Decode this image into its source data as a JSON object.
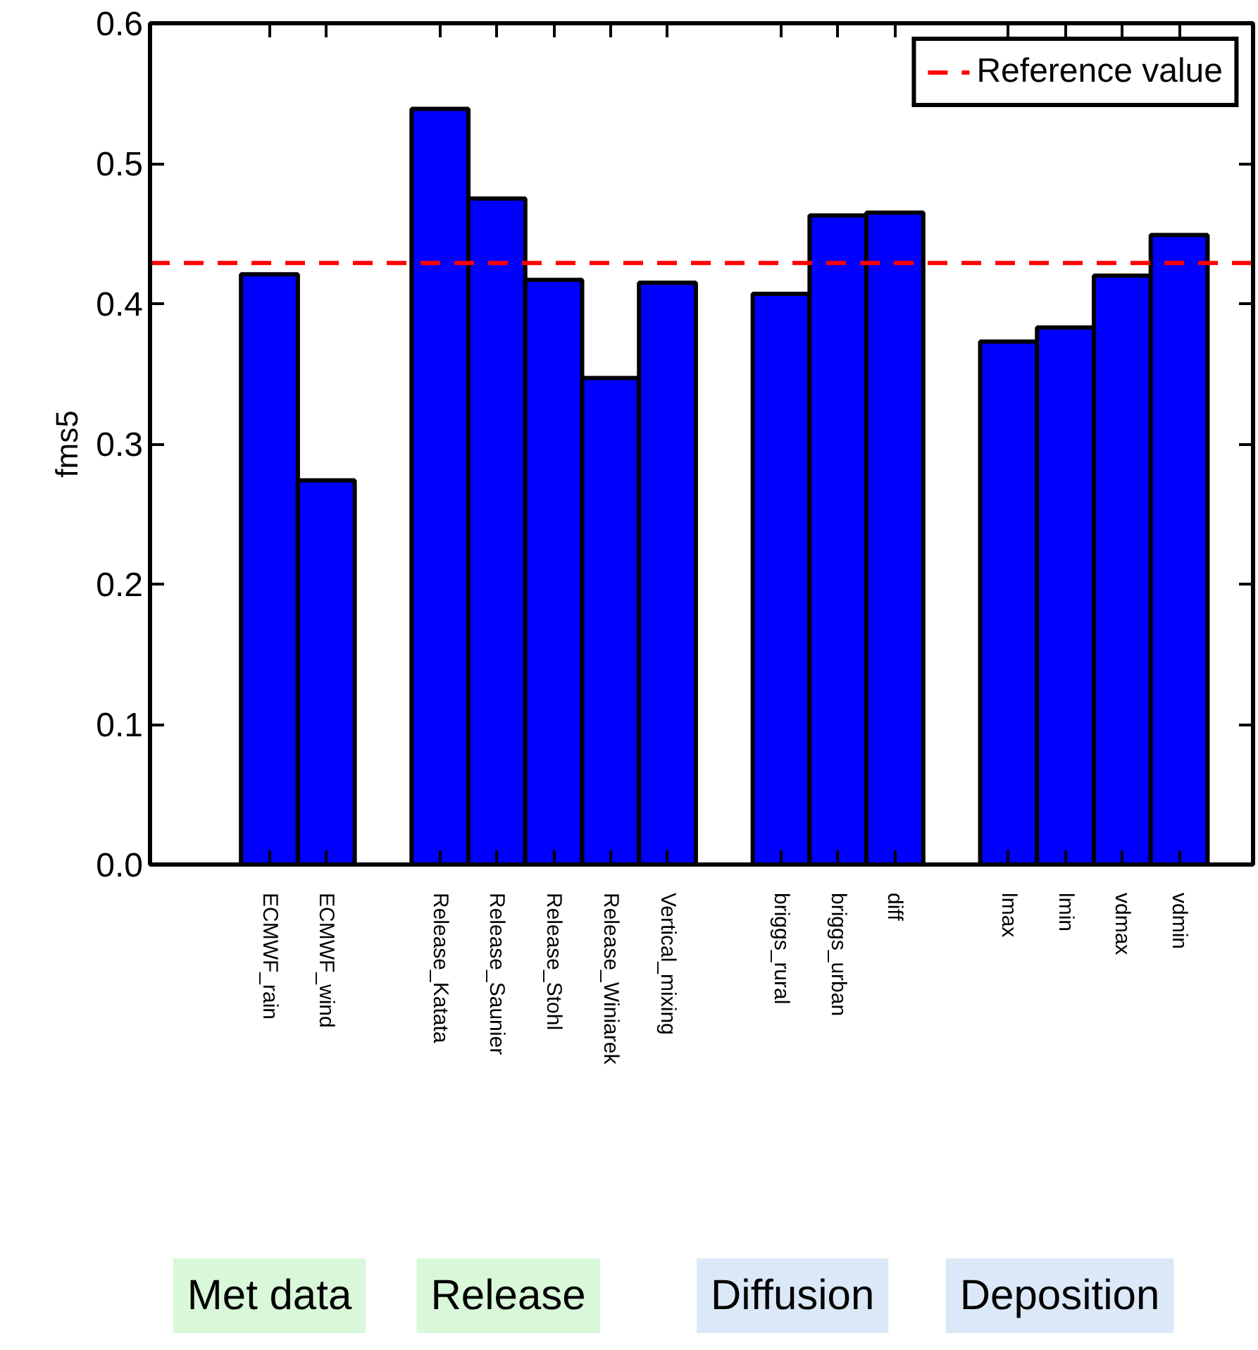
{
  "chart_data": {
    "type": "bar",
    "ylabel": "fms5",
    "categories": [
      "ECMWF_rain",
      "ECMWF_wind",
      null,
      "Release_Katata",
      "Release_Saunier",
      "Release_Stohl",
      "Release_Winiarek",
      "Vertical_mixing",
      null,
      "briggs_rural",
      "briggs_urban",
      "diff",
      null,
      "lmax",
      "lmin",
      "vdmax",
      "vdmin"
    ],
    "values": [
      0.421,
      0.274,
      null,
      0.539,
      0.475,
      0.417,
      0.347,
      0.415,
      null,
      0.407,
      0.463,
      0.465,
      null,
      0.373,
      0.383,
      0.42,
      0.449
    ],
    "color": "#0000ff",
    "ylim": [
      0,
      0.6
    ],
    "yticks": [
      {
        "value": 0,
        "label": "0.0"
      },
      0.1,
      0.2,
      0.3,
      0.4,
      0.5,
      0.6
    ],
    "ref_lines": [
      {
        "axis": "y",
        "value": 0.429,
        "label": "Reference value",
        "color": "#ff0000",
        "line_style": "dashed"
      }
    ],
    "legend": "top right",
    "grid": false,
    "annotations": [
      "Met data",
      "Release",
      "Diffusion",
      "Deposition"
    ]
  }
}
